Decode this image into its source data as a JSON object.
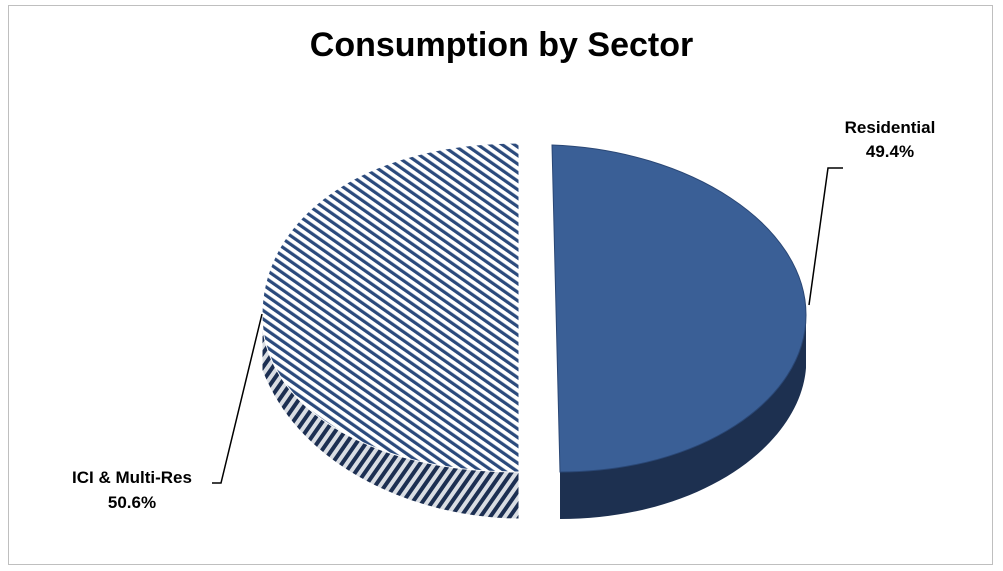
{
  "chart_data": {
    "type": "pie",
    "title": "Consumption by Sector",
    "slices": [
      {
        "label": "Residential",
        "value": 49.4,
        "display": "49.4%",
        "color": "#3a5f96",
        "pattern": "solid"
      },
      {
        "label": "ICI & Multi-Res",
        "value": 50.6,
        "display": "50.6%",
        "color": "#1f3a66",
        "pattern": "diagonal-stripes"
      }
    ],
    "legend": "none",
    "style": "3d-exploded"
  }
}
